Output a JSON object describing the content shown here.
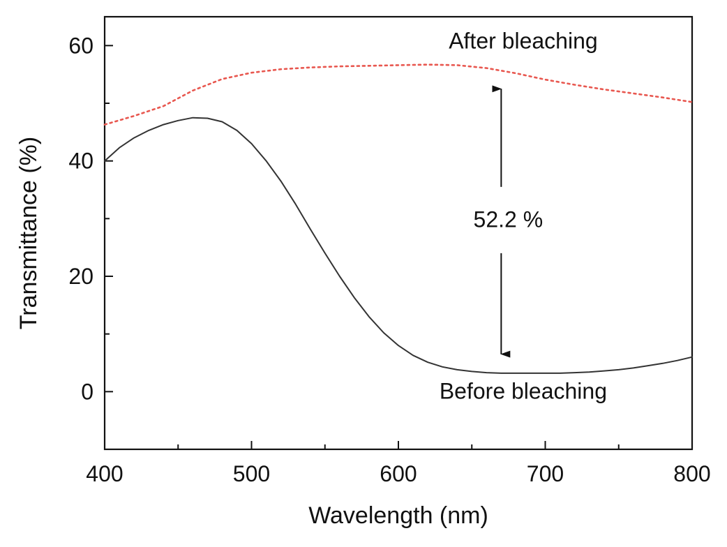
{
  "chart_data": {
    "type": "line",
    "title": "",
    "xlabel": "Wavelength (nm)",
    "ylabel": "Transmittance (%)",
    "xlim": [
      400,
      800
    ],
    "ylim": [
      -10,
      65
    ],
    "x_ticks": [
      400,
      500,
      600,
      700,
      800
    ],
    "x_tick_labels": [
      "400",
      "500",
      "600",
      "700",
      "800"
    ],
    "x_minor_ticks": [
      450,
      550,
      650,
      750
    ],
    "y_ticks": [
      0,
      20,
      40,
      60
    ],
    "y_tick_labels": [
      "0",
      "20",
      "40",
      "60"
    ],
    "y_minor_ticks": [
      -10,
      10,
      30,
      50
    ],
    "grid": false,
    "series": [
      {
        "name": "After bleaching",
        "style": "dotted",
        "color": "#e8574f",
        "points": [
          [
            400,
            46.3
          ],
          [
            420,
            47.8
          ],
          [
            440,
            49.5
          ],
          [
            460,
            52.2
          ],
          [
            480,
            54.2
          ],
          [
            500,
            55.3
          ],
          [
            520,
            55.9
          ],
          [
            540,
            56.2
          ],
          [
            560,
            56.4
          ],
          [
            580,
            56.5
          ],
          [
            600,
            56.6
          ],
          [
            620,
            56.7
          ],
          [
            640,
            56.6
          ],
          [
            660,
            56.1
          ],
          [
            680,
            55.2
          ],
          [
            700,
            54.1
          ],
          [
            720,
            53.2
          ],
          [
            740,
            52.4
          ],
          [
            760,
            51.7
          ],
          [
            780,
            51.0
          ],
          [
            800,
            50.2
          ]
        ]
      },
      {
        "name": "Before bleaching",
        "style": "solid",
        "color": "#333333",
        "points": [
          [
            400,
            40.0
          ],
          [
            410,
            42.3
          ],
          [
            420,
            44.0
          ],
          [
            430,
            45.3
          ],
          [
            440,
            46.3
          ],
          [
            450,
            47.0
          ],
          [
            460,
            47.5
          ],
          [
            470,
            47.4
          ],
          [
            480,
            46.8
          ],
          [
            490,
            45.3
          ],
          [
            500,
            43.0
          ],
          [
            510,
            40.0
          ],
          [
            520,
            36.5
          ],
          [
            530,
            32.5
          ],
          [
            540,
            28.2
          ],
          [
            550,
            24.0
          ],
          [
            560,
            20.0
          ],
          [
            570,
            16.3
          ],
          [
            580,
            13.0
          ],
          [
            590,
            10.2
          ],
          [
            600,
            8.0
          ],
          [
            610,
            6.3
          ],
          [
            620,
            5.1
          ],
          [
            630,
            4.3
          ],
          [
            640,
            3.8
          ],
          [
            650,
            3.5
          ],
          [
            660,
            3.3
          ],
          [
            670,
            3.2
          ],
          [
            680,
            3.2
          ],
          [
            690,
            3.2
          ],
          [
            700,
            3.2
          ],
          [
            710,
            3.2
          ],
          [
            720,
            3.3
          ],
          [
            730,
            3.4
          ],
          [
            740,
            3.6
          ],
          [
            750,
            3.8
          ],
          [
            760,
            4.1
          ],
          [
            770,
            4.5
          ],
          [
            780,
            4.9
          ],
          [
            790,
            5.4
          ],
          [
            800,
            6.0
          ]
        ]
      }
    ],
    "annotations": {
      "after_label": {
        "text": "After bleaching",
        "x": 685,
        "y": 59.5
      },
      "before_label": {
        "text": "Before bleaching",
        "x": 685,
        "y": -1.2
      },
      "difference_label": {
        "text": "52.2 %",
        "x": 670,
        "y": 28.5
      },
      "arrow": {
        "x": 670,
        "y_top": 52.5,
        "y_bottom": 6.5,
        "gap_top": 35.5,
        "gap_bottom": 24.0
      }
    }
  }
}
